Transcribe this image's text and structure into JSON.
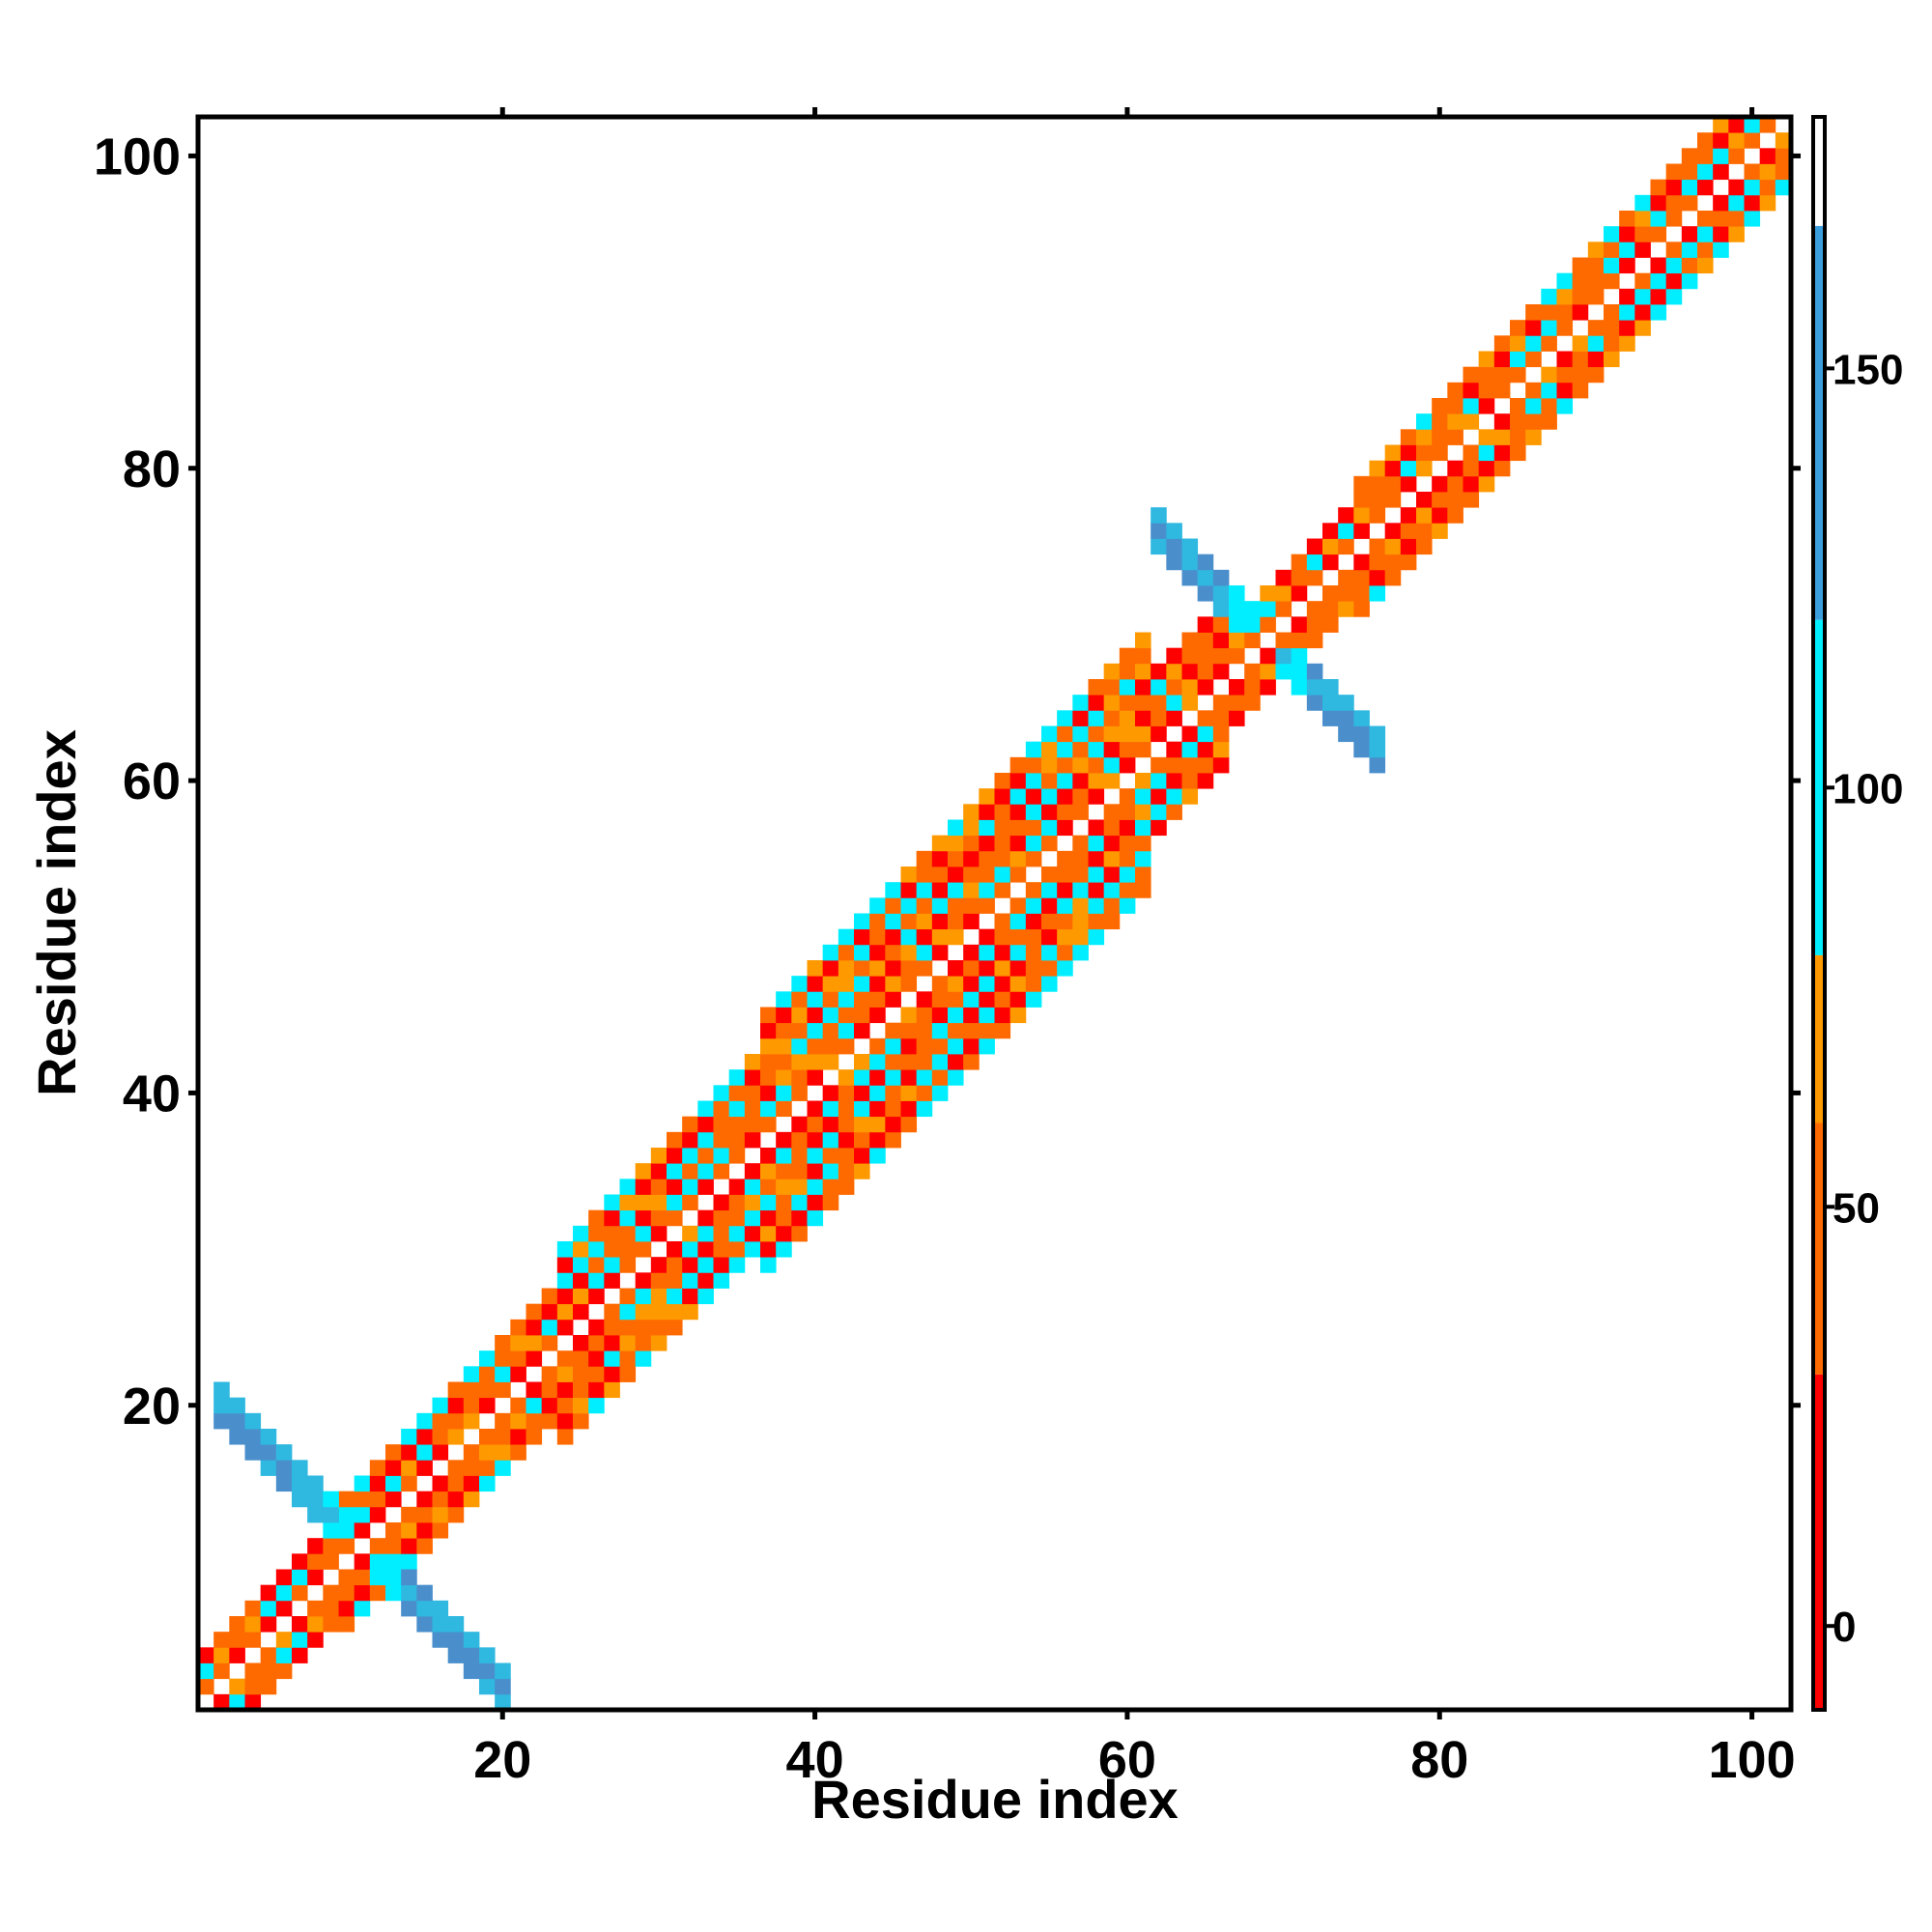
{
  "chart_data": {
    "type": "heatmap",
    "title": "",
    "xlabel": "Residue index",
    "ylabel": "Residue index",
    "xlim": [
      0.5,
      102.5
    ],
    "ylim": [
      0.5,
      102.5
    ],
    "x_ticks": [
      20,
      40,
      60,
      80,
      100
    ],
    "y_ticks": [
      20,
      40,
      60,
      80,
      100
    ],
    "x_tick_labels": [
      "20",
      "40",
      "60",
      "80",
      "100"
    ],
    "y_tick_labels": [
      "20",
      "40",
      "60",
      "80",
      "100"
    ],
    "grid": false,
    "colorbar": {
      "range": [
        -10,
        180
      ],
      "ticks": [
        0,
        50,
        100,
        150
      ],
      "tick_labels": [
        "0",
        "50",
        "100",
        "150"
      ],
      "bands": [
        {
          "from": -10,
          "to": 30,
          "color": "#ff0000"
        },
        {
          "from": 30,
          "to": 60,
          "color": "#ff6a00"
        },
        {
          "from": 60,
          "to": 80,
          "color": "#ff9900"
        },
        {
          "from": 80,
          "to": 120,
          "color": "#00eeff"
        },
        {
          "from": 120,
          "to": 167,
          "color": "#3a9fdc"
        },
        {
          "from": 167,
          "to": 180,
          "color": "#ffffff"
        }
      ]
    },
    "value_colors": {
      "0": "#ff0000",
      "45": "#ff6a00",
      "70": "#ff9900",
      "100": "#00eeff",
      "130": "#2fb8e0",
      "150": "#4a8fcc"
    },
    "description_of_cells": "Matrix of residue-pair values in a band within ~8 residues of the diagonal (checker pattern of red/orange/cyan), plus two antidiagonal blue segments centered near (11,11) and (69,69).",
    "cells": []
  }
}
